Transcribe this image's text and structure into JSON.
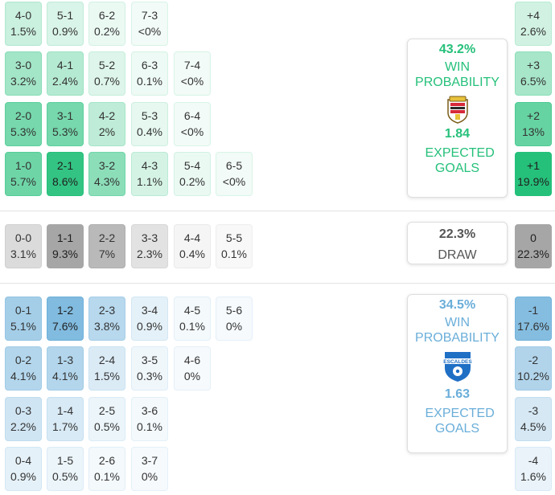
{
  "chart_data": {
    "type": "heatmap",
    "home_scores": [
      [
        {
          "s": "4-0",
          "p": "1.5%",
          "v": 1.5
        },
        {
          "s": "5-1",
          "p": "0.9%",
          "v": 0.9
        },
        {
          "s": "6-2",
          "p": "0.2%",
          "v": 0.2
        },
        {
          "s": "7-3",
          "p": "<0%",
          "v": 0
        }
      ],
      [
        {
          "s": "3-0",
          "p": "3.2%",
          "v": 3.2
        },
        {
          "s": "4-1",
          "p": "2.4%",
          "v": 2.4
        },
        {
          "s": "5-2",
          "p": "0.7%",
          "v": 0.7
        },
        {
          "s": "6-3",
          "p": "0.1%",
          "v": 0.1
        },
        {
          "s": "7-4",
          "p": "<0%",
          "v": 0
        }
      ],
      [
        {
          "s": "2-0",
          "p": "5.3%",
          "v": 5.3
        },
        {
          "s": "3-1",
          "p": "5.3%",
          "v": 5.3
        },
        {
          "s": "4-2",
          "p": "2%",
          "v": 2.0
        },
        {
          "s": "5-3",
          "p": "0.4%",
          "v": 0.4
        },
        {
          "s": "6-4",
          "p": "<0%",
          "v": 0
        }
      ],
      [
        {
          "s": "1-0",
          "p": "5.7%",
          "v": 5.7
        },
        {
          "s": "2-1",
          "p": "8.6%",
          "v": 8.6
        },
        {
          "s": "3-2",
          "p": "4.3%",
          "v": 4.3
        },
        {
          "s": "4-3",
          "p": "1.1%",
          "v": 1.1
        },
        {
          "s": "5-4",
          "p": "0.2%",
          "v": 0.2
        },
        {
          "s": "6-5",
          "p": "<0%",
          "v": 0
        }
      ]
    ],
    "draw_scores": [
      {
        "s": "0-0",
        "p": "3.1%",
        "v": 3.1
      },
      {
        "s": "1-1",
        "p": "9.3%",
        "v": 9.3
      },
      {
        "s": "2-2",
        "p": "7%",
        "v": 7.0
      },
      {
        "s": "3-3",
        "p": "2.3%",
        "v": 2.3
      },
      {
        "s": "4-4",
        "p": "0.4%",
        "v": 0.4
      },
      {
        "s": "5-5",
        "p": "0.1%",
        "v": 0.1
      }
    ],
    "away_scores": [
      [
        {
          "s": "0-1",
          "p": "5.1%",
          "v": 5.1
        },
        {
          "s": "1-2",
          "p": "7.6%",
          "v": 7.6
        },
        {
          "s": "2-3",
          "p": "3.8%",
          "v": 3.8
        },
        {
          "s": "3-4",
          "p": "0.9%",
          "v": 0.9
        },
        {
          "s": "4-5",
          "p": "0.1%",
          "v": 0.1
        },
        {
          "s": "5-6",
          "p": "0%",
          "v": 0
        }
      ],
      [
        {
          "s": "0-2",
          "p": "4.1%",
          "v": 4.1
        },
        {
          "s": "1-3",
          "p": "4.1%",
          "v": 4.1
        },
        {
          "s": "2-4",
          "p": "1.5%",
          "v": 1.5
        },
        {
          "s": "3-5",
          "p": "0.3%",
          "v": 0.3
        },
        {
          "s": "4-6",
          "p": "0%",
          "v": 0
        }
      ],
      [
        {
          "s": "0-3",
          "p": "2.2%",
          "v": 2.2
        },
        {
          "s": "1-4",
          "p": "1.7%",
          "v": 1.7
        },
        {
          "s": "2-5",
          "p": "0.5%",
          "v": 0.5
        },
        {
          "s": "3-6",
          "p": "0.1%",
          "v": 0.1
        }
      ],
      [
        {
          "s": "0-4",
          "p": "0.9%",
          "v": 0.9
        },
        {
          "s": "1-5",
          "p": "0.5%",
          "v": 0.5
        },
        {
          "s": "2-6",
          "p": "0.1%",
          "v": 0.1
        },
        {
          "s": "3-7",
          "p": "0%",
          "v": 0
        }
      ]
    ],
    "margins_home": [
      {
        "s": "+4",
        "p": "2.6%",
        "v": 2.6
      },
      {
        "s": "+3",
        "p": "6.5%",
        "v": 6.5
      },
      {
        "s": "+2",
        "p": "13%",
        "v": 13
      },
      {
        "s": "+1",
        "p": "19.9%",
        "v": 19.9
      }
    ],
    "margin_draw": {
      "s": "0",
      "p": "22.3%",
      "v": 22.3
    },
    "margins_away": [
      {
        "s": "-1",
        "p": "17.6%",
        "v": 17.6
      },
      {
        "s": "-2",
        "p": "10.2%",
        "v": 10.2
      },
      {
        "s": "-3",
        "p": "4.5%",
        "v": 4.5
      },
      {
        "s": "-4",
        "p": "1.6%",
        "v": 1.6
      }
    ]
  },
  "home_card": {
    "win_pct": "43.2%",
    "win_label": "WIN PROBABILITY",
    "xg": "1.84",
    "xg_label": "EXPECTED GOALS"
  },
  "draw_card": {
    "pct": "22.3%",
    "label": "DRAW"
  },
  "away_card": {
    "win_pct": "34.5%",
    "win_label": "WIN PROBABILITY",
    "xg": "1.63",
    "xg_label": "EXPECTED GOALS",
    "crest_text": "ESCALDES"
  },
  "colors": {
    "home": "#25c07a",
    "away": "#6aaed9",
    "draw": "#a6a6a6"
  }
}
